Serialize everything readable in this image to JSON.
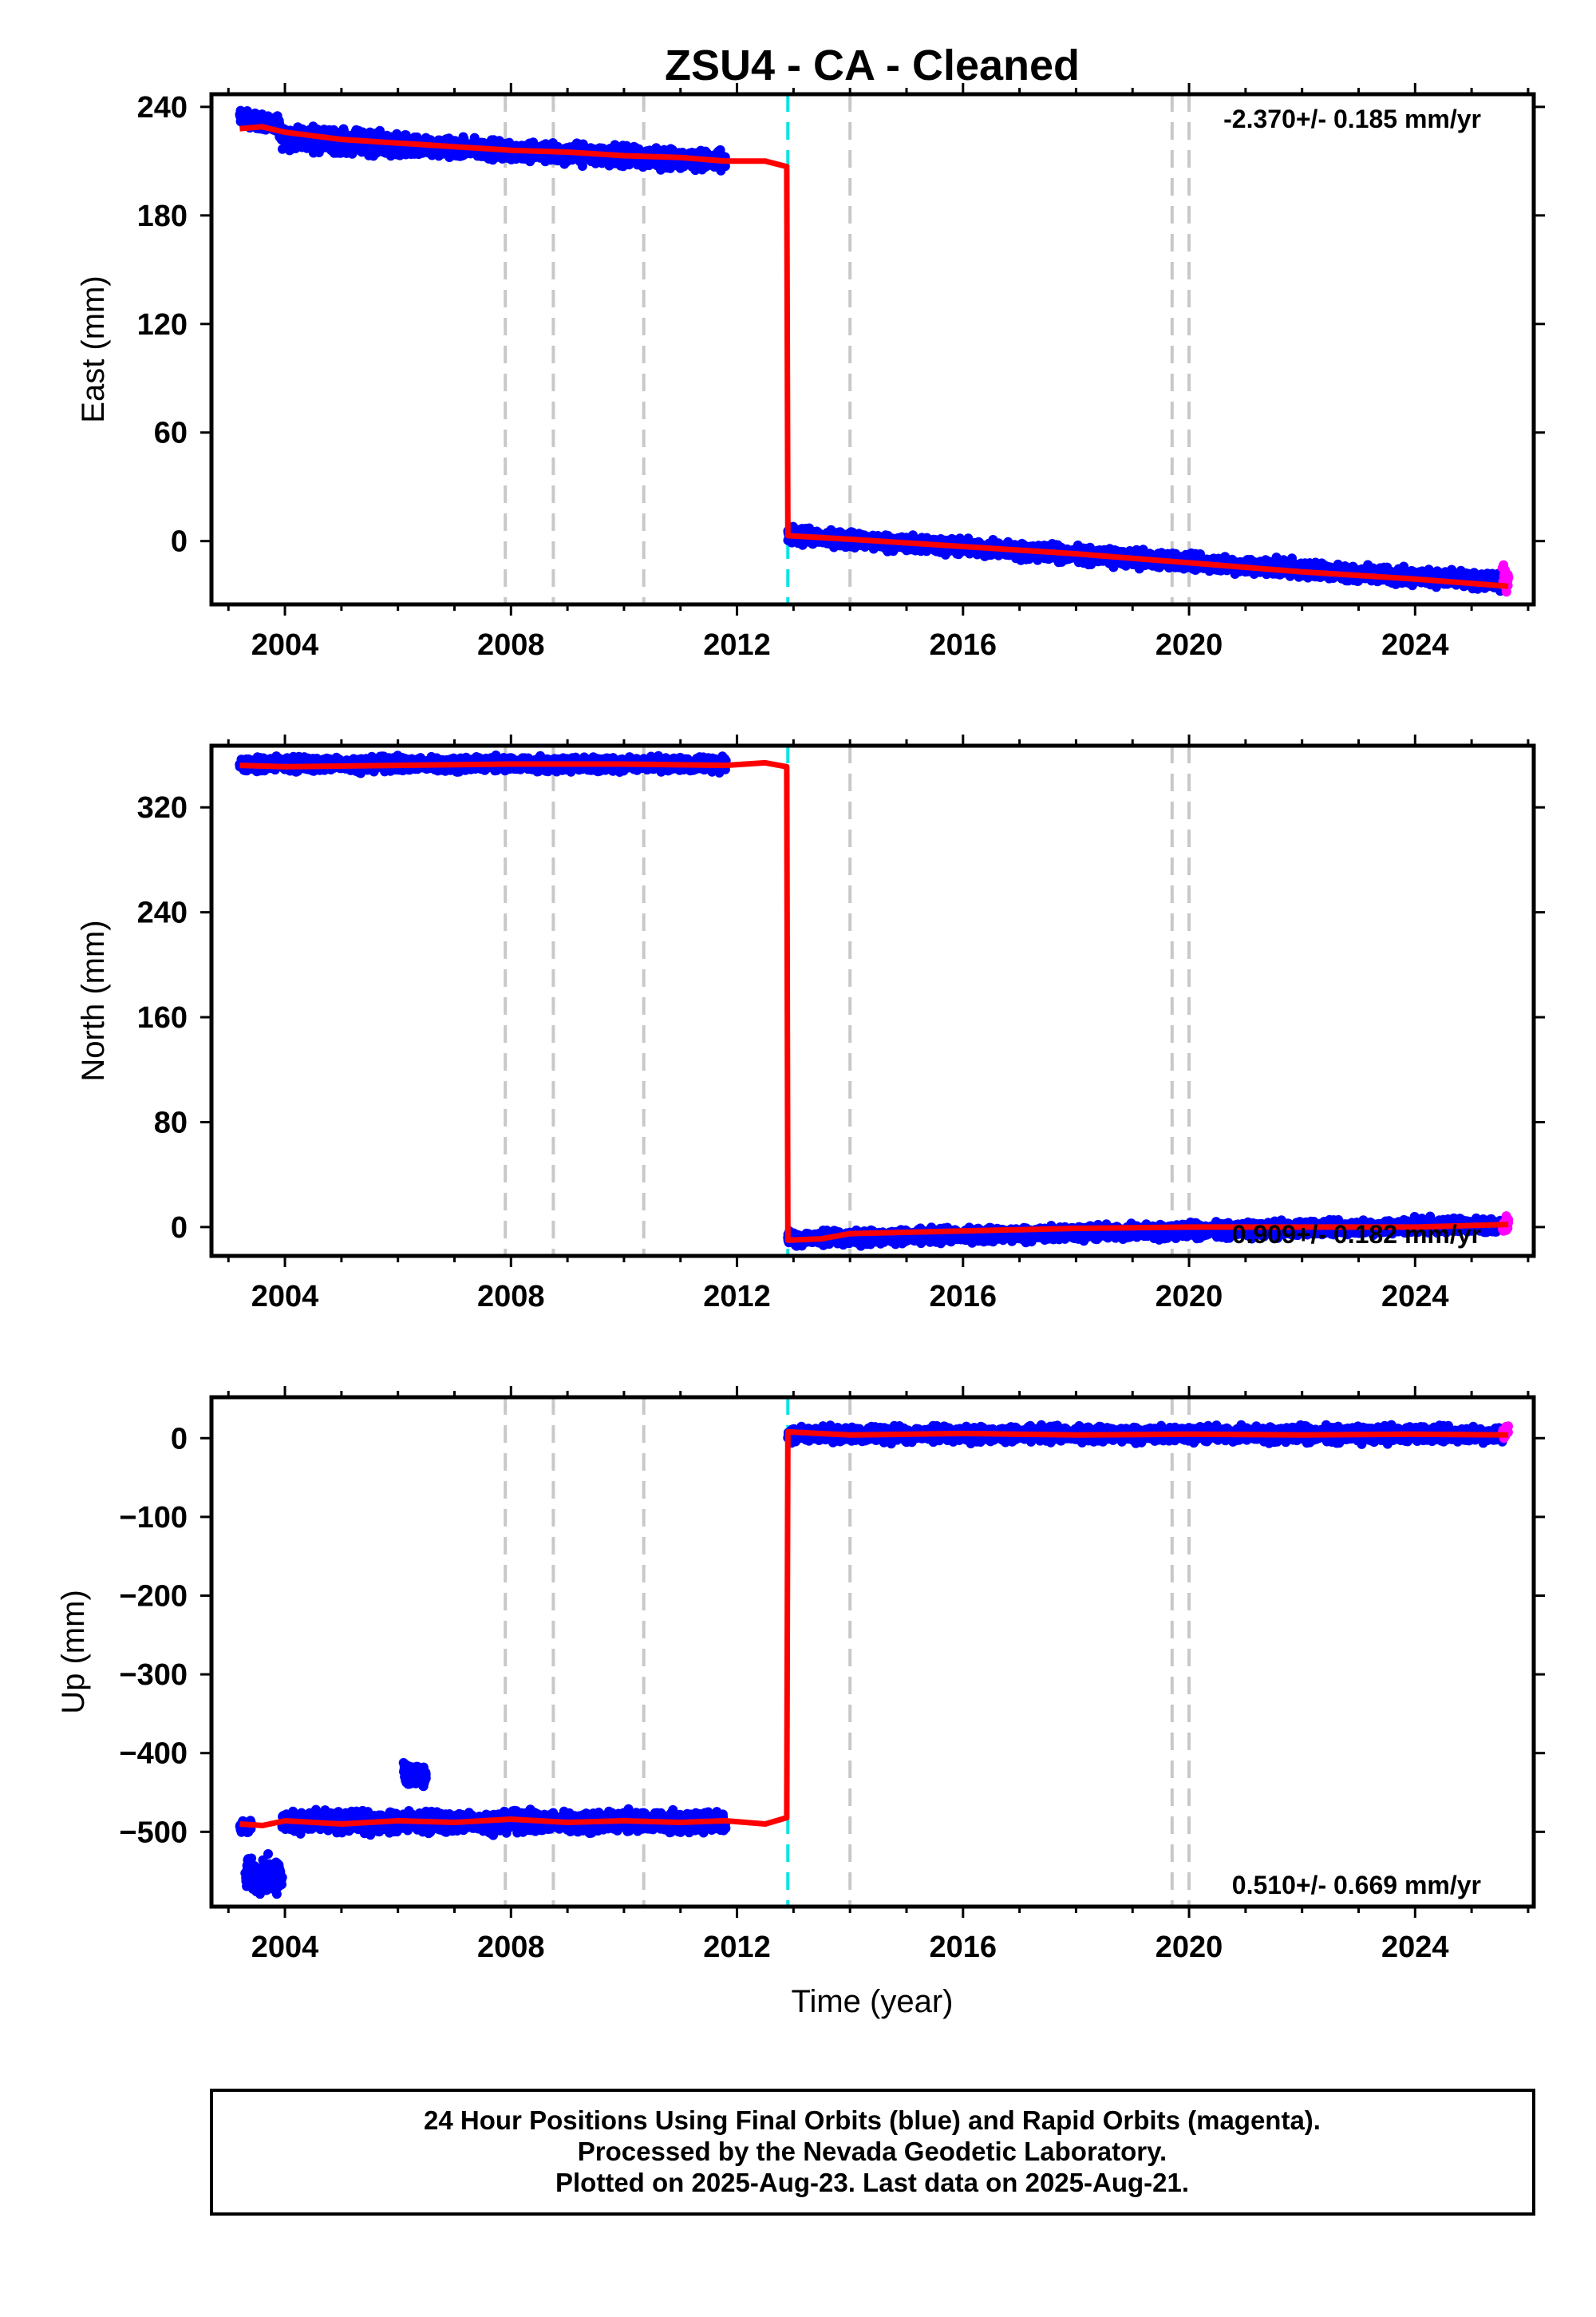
{
  "title": "ZSU4  - CA - Cleaned",
  "xlabel": "Time (year)",
  "footer": [
    "24 Hour Positions Using Final Orbits (blue) and Rapid Orbits (magenta).",
    "Processed by the Nevada Geodetic Laboratory.",
    "Plotted on 2025-Aug-23. Last data on 2025-Aug-21."
  ],
  "colors": {
    "final": "#0000ff",
    "rapid": "#ff00ff",
    "model": "#ff0000",
    "event_dash": "#c8c8c8",
    "equipment_dash": "#00e5e5"
  },
  "chart_data": [
    {
      "type": "scatter",
      "name": "east",
      "ylabel": "East (mm)",
      "xlim": [
        2002.7,
        2026.1
      ],
      "ylim": [
        -35,
        247
      ],
      "xticks": [
        2004,
        2008,
        2012,
        2016,
        2020,
        2024
      ],
      "yticks": [
        0,
        60,
        120,
        180,
        240
      ],
      "rate_label": "-2.370+/- 0.185 mm/yr",
      "rate_position": "top-right",
      "vertical_lines_gray": [
        2007.9,
        2008.75,
        2010.35,
        2014.0,
        2019.7,
        2020.0
      ],
      "vertical_lines_cyan": [
        2012.9
      ],
      "final_segments": [
        {
          "x0": 2003.2,
          "x1": 2003.9,
          "y0": 234,
          "y1": 230,
          "spread": 4
        },
        {
          "x0": 2003.9,
          "x1": 2006.4,
          "y0": 224,
          "y1": 217,
          "spread": 6
        },
        {
          "x0": 2006.4,
          "x1": 2011.8,
          "y0": 218,
          "y1": 210,
          "spread": 5
        },
        {
          "x0": 2012.9,
          "x1": 2025.55,
          "y0": 3,
          "y1": -23,
          "spread": 4
        }
      ],
      "rapid_segments": [
        {
          "x0": 2025.55,
          "x1": 2025.65,
          "y0": -20,
          "y1": -20,
          "spread": 6
        }
      ],
      "model": [
        [
          2003.2,
          228
        ],
        [
          2003.6,
          229
        ],
        [
          2004.0,
          226
        ],
        [
          2005.0,
          222
        ],
        [
          2006.0,
          220
        ],
        [
          2007.0,
          218
        ],
        [
          2008.0,
          216
        ],
        [
          2009.0,
          215
        ],
        [
          2010.0,
          213
        ],
        [
          2011.0,
          212
        ],
        [
          2011.8,
          210
        ],
        [
          2012.5,
          210
        ],
        [
          2012.88,
          207
        ],
        [
          2012.9,
          3
        ],
        [
          2014.0,
          1
        ],
        [
          2016.0,
          -3
        ],
        [
          2018.0,
          -7
        ],
        [
          2020.0,
          -12
        ],
        [
          2022.0,
          -17
        ],
        [
          2024.0,
          -21
        ],
        [
          2025.65,
          -25
        ]
      ]
    },
    {
      "type": "scatter",
      "name": "north",
      "ylabel": "North (mm)",
      "xlim": [
        2002.7,
        2026.1
      ],
      "ylim": [
        -22,
        367
      ],
      "xticks": [
        2004,
        2008,
        2012,
        2016,
        2020,
        2024
      ],
      "yticks": [
        0,
        80,
        160,
        240,
        320
      ],
      "rate_label": "0.909+/- 0.182 mm/yr",
      "rate_position": "bottom-right",
      "vertical_lines_gray": [
        2007.9,
        2008.75,
        2010.35,
        2014.0,
        2019.7,
        2020.0
      ],
      "vertical_lines_cyan": [
        2012.9
      ],
      "final_segments": [
        {
          "x0": 2003.2,
          "x1": 2011.8,
          "y0": 353,
          "y1": 353,
          "spread": 5
        },
        {
          "x0": 2012.9,
          "x1": 2025.55,
          "y0": -9,
          "y1": 2,
          "spread": 5
        }
      ],
      "rapid_segments": [
        {
          "x0": 2025.55,
          "x1": 2025.65,
          "y0": 1,
          "y1": 1,
          "spread": 6
        }
      ],
      "model": [
        [
          2003.2,
          352
        ],
        [
          2004.0,
          351
        ],
        [
          2006.0,
          352
        ],
        [
          2008.0,
          353
        ],
        [
          2010.0,
          353
        ],
        [
          2011.8,
          352
        ],
        [
          2012.5,
          354
        ],
        [
          2012.88,
          351
        ],
        [
          2012.9,
          -10
        ],
        [
          2013.5,
          -9
        ],
        [
          2014.0,
          -5
        ],
        [
          2016.0,
          -3
        ],
        [
          2018.0,
          -1
        ],
        [
          2020.0,
          0
        ],
        [
          2022.0,
          0
        ],
        [
          2024.0,
          0
        ],
        [
          2025.65,
          2
        ]
      ]
    },
    {
      "type": "scatter",
      "name": "up",
      "ylabel": "Up (mm)",
      "xlim": [
        2002.7,
        2026.1
      ],
      "ylim": [
        -595,
        52
      ],
      "xticks": [
        2004,
        2008,
        2012,
        2016,
        2020,
        2024
      ],
      "yticks": [
        0,
        -100,
        -200,
        -300,
        -400,
        -500
      ],
      "rate_label": "0.510+/- 0.669 mm/yr",
      "rate_position": "bottom-right",
      "vertical_lines_gray": [
        2007.9,
        2008.75,
        2010.35,
        2014.0,
        2019.7,
        2020.0
      ],
      "vertical_lines_cyan": [
        2012.9
      ],
      "final_segments": [
        {
          "x0": 2003.2,
          "x1": 2003.4,
          "y0": -493,
          "y1": -493,
          "spread": 8
        },
        {
          "x0": 2003.3,
          "x1": 2003.95,
          "y0": -555,
          "y1": -555,
          "spread": 20
        },
        {
          "x0": 2003.95,
          "x1": 2011.8,
          "y0": -488,
          "y1": -487,
          "spread": 12
        },
        {
          "x0": 2006.1,
          "x1": 2006.5,
          "y0": -425,
          "y1": -430,
          "spread": 12
        },
        {
          "x0": 2012.9,
          "x1": 2025.55,
          "y0": 5,
          "y1": 5,
          "spread": 9
        }
      ],
      "rapid_segments": [
        {
          "x0": 2025.55,
          "x1": 2025.65,
          "y0": 8,
          "y1": 8,
          "spread": 12
        }
      ],
      "model": [
        [
          2003.2,
          -490
        ],
        [
          2003.6,
          -492
        ],
        [
          2004.0,
          -486
        ],
        [
          2005.0,
          -490
        ],
        [
          2006.0,
          -486
        ],
        [
          2007.0,
          -488
        ],
        [
          2008.0,
          -484
        ],
        [
          2009.0,
          -488
        ],
        [
          2010.0,
          -486
        ],
        [
          2011.0,
          -488
        ],
        [
          2011.8,
          -486
        ],
        [
          2012.5,
          -490
        ],
        [
          2012.88,
          -482
        ],
        [
          2012.9,
          8
        ],
        [
          2014.0,
          4
        ],
        [
          2016.0,
          6
        ],
        [
          2018.0,
          4
        ],
        [
          2020.0,
          5
        ],
        [
          2022.0,
          4
        ],
        [
          2024.0,
          5
        ],
        [
          2025.65,
          4
        ]
      ]
    }
  ]
}
